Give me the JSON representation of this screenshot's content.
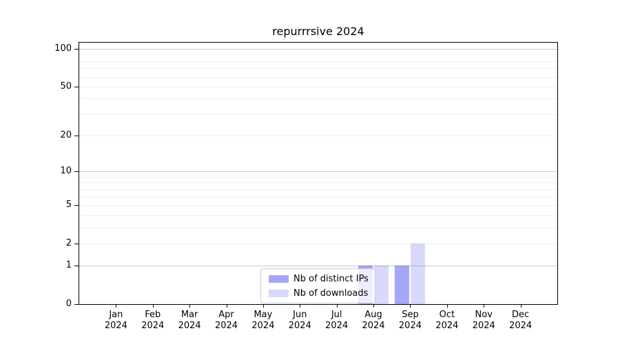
{
  "chart_data": {
    "type": "bar",
    "title": "repurrrsive 2024",
    "categories": [
      "Jan 2024",
      "Feb 2024",
      "Mar 2024",
      "Apr 2024",
      "May 2024",
      "Jun 2024",
      "Jul 2024",
      "Aug 2024",
      "Sep 2024",
      "Oct 2024",
      "Nov 2024",
      "Dec 2024"
    ],
    "series": [
      {
        "name": "Nb of distinct IPs",
        "color": "rgba(0,0,230,0.35)",
        "values": [
          0,
          0,
          0,
          0,
          0,
          0,
          0,
          1,
          1,
          0,
          0,
          0
        ]
      },
      {
        "name": "Nb of downloads",
        "color": "rgba(0,0,230,0.15)",
        "values": [
          0,
          0,
          0,
          0,
          0,
          0,
          0,
          1,
          2,
          0,
          0,
          0
        ]
      }
    ],
    "yscale": "log1p",
    "ylim": [
      0,
      112
    ],
    "yticks": [
      0,
      1,
      2,
      5,
      10,
      20,
      50,
      100
    ],
    "xlabel": "",
    "ylabel": "",
    "grid": {
      "major_color": "#c9c9c9",
      "minor_color": "#efefef",
      "major_values": [
        1,
        10,
        100
      ],
      "minor_values": [
        2,
        3,
        4,
        5,
        6,
        7,
        8,
        9,
        20,
        30,
        40,
        50,
        60,
        70,
        80,
        90
      ]
    },
    "legend": {
      "position": "bottom-center",
      "frame_background": "rgba(255,255,255,0.8)",
      "frame_border": "#cccccc"
    }
  },
  "axes": {
    "spine_color": "#000000",
    "tick_color": "#000000",
    "label_color": "#000000"
  }
}
